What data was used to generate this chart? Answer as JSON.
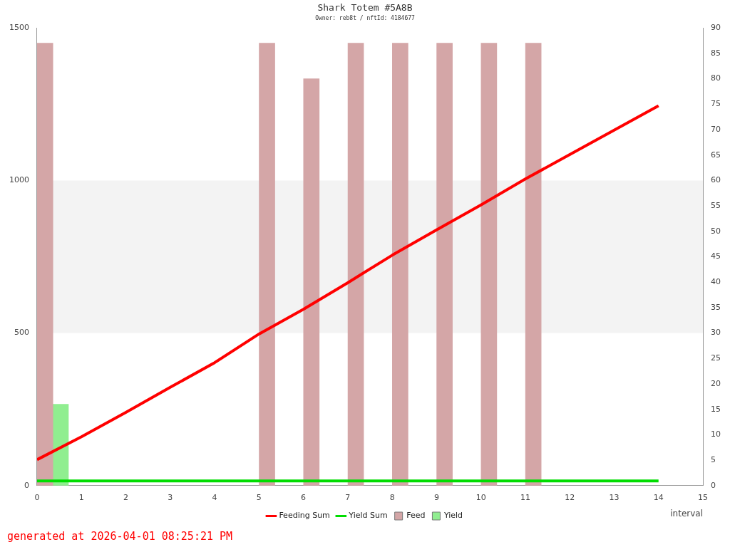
{
  "chart_data": {
    "type": "line",
    "title": "Shark Totem #5A8B",
    "subtitle": "Owner: reb8t / nftId: 4184677",
    "xlabel": "interval",
    "xlim": [
      0,
      15
    ],
    "xticks": [
      0,
      1,
      2,
      3,
      4,
      5,
      6,
      7,
      8,
      9,
      10,
      11,
      12,
      13,
      14,
      15
    ],
    "ylim": [
      0,
      1500
    ],
    "yticks": [
      0,
      500,
      1000,
      1500
    ],
    "y2lim": [
      0,
      90
    ],
    "y2ticks": [
      0,
      5,
      10,
      15,
      20,
      25,
      30,
      35,
      40,
      45,
      50,
      55,
      60,
      65,
      70,
      75,
      80,
      85,
      90
    ],
    "x": [
      0,
      1,
      2,
      3,
      4,
      5,
      6,
      7,
      8,
      9,
      10,
      11,
      12,
      13,
      14
    ],
    "series": [
      {
        "name": "Feeding Sum",
        "color": "#ff0000",
        "values": [
          85,
          160,
          240,
          322,
          403,
          497,
          578,
          665,
          755,
          838,
          920,
          1005,
          1085,
          1165,
          1245
        ]
      },
      {
        "name": "Yield Sum",
        "color": "#00dd00",
        "values": [
          15,
          15,
          15,
          15,
          15,
          15,
          15,
          15,
          15,
          15,
          15,
          15,
          15,
          15,
          15
        ]
      },
      {
        "name": "Feed",
        "type": "bar",
        "axis": "y2",
        "color": "#d4a6a7",
        "x": [
          0.18,
          5.18,
          6.18,
          7.18,
          8.18,
          9.18,
          10.18,
          11.18
        ],
        "values": [
          87,
          87,
          80,
          87,
          87,
          87,
          87,
          87
        ]
      },
      {
        "name": "Yield",
        "type": "bar",
        "axis": "y2",
        "color": "#90ee90",
        "x": [
          0.53
        ],
        "values": [
          16
        ]
      }
    ],
    "bands": [
      {
        "axis": "y",
        "from": 500,
        "to": 1000,
        "color": "#f3f3f3"
      }
    ],
    "grid": false,
    "marker": "none",
    "line_style": "solid",
    "legend": "bottom",
    "annotations": [
      "generated at 2026-04-01 08:25:21 PM"
    ]
  }
}
